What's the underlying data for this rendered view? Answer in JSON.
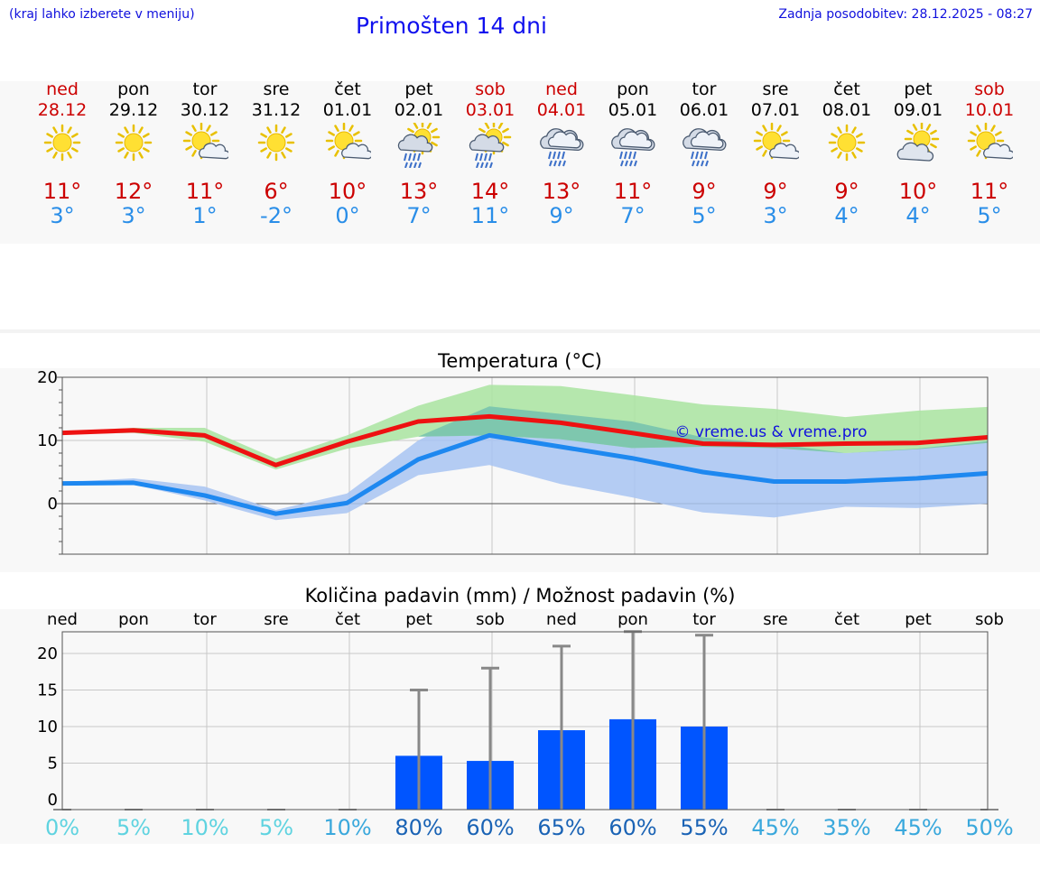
{
  "header": {
    "note": "(kraj lahko izberete v meniju)",
    "title": "Primošten 14 dni",
    "updated": "Zadnja posodobitev: 28.12.2025 - 08:27"
  },
  "colors": {
    "weekend": "#cc0000",
    "temp_max": "#cc0000",
    "temp_min": "#2a8ee8",
    "bar": "#0055ff",
    "errbar": "#888888",
    "max_band": "#a9e4a0",
    "min_band": "#a8c4f2",
    "overlap_band": "#79c4ae"
  },
  "days": [
    {
      "name": "ned",
      "date": "28.12",
      "weekend": true,
      "icon": "sun",
      "tmax": "11°",
      "tmin": "3°"
    },
    {
      "name": "pon",
      "date": "29.12",
      "weekend": false,
      "icon": "sun",
      "tmax": "12°",
      "tmin": "3°"
    },
    {
      "name": "tor",
      "date": "30.12",
      "weekend": false,
      "icon": "sun-cloud",
      "tmax": "11°",
      "tmin": "1°"
    },
    {
      "name": "sre",
      "date": "31.12",
      "weekend": false,
      "icon": "sun",
      "tmax": "6°",
      "tmin": "-2°"
    },
    {
      "name": "čet",
      "date": "01.01",
      "weekend": false,
      "icon": "sun-cloud",
      "tmax": "10°",
      "tmin": "0°"
    },
    {
      "name": "pet",
      "date": "02.01",
      "weekend": false,
      "icon": "sun-rain",
      "tmax": "13°",
      "tmin": "7°"
    },
    {
      "name": "sob",
      "date": "03.01",
      "weekend": true,
      "icon": "sun-rain",
      "tmax": "14°",
      "tmin": "11°"
    },
    {
      "name": "ned",
      "date": "04.01",
      "weekend": true,
      "icon": "rain",
      "tmax": "13°",
      "tmin": "9°"
    },
    {
      "name": "pon",
      "date": "05.01",
      "weekend": false,
      "icon": "rain",
      "tmax": "11°",
      "tmin": "7°"
    },
    {
      "name": "tor",
      "date": "06.01",
      "weekend": false,
      "icon": "rain",
      "tmax": "9°",
      "tmin": "5°"
    },
    {
      "name": "sre",
      "date": "07.01",
      "weekend": false,
      "icon": "sun-cloud",
      "tmax": "9°",
      "tmin": "3°"
    },
    {
      "name": "čet",
      "date": "08.01",
      "weekend": false,
      "icon": "sun",
      "tmax": "9°",
      "tmin": "4°"
    },
    {
      "name": "pet",
      "date": "09.01",
      "weekend": false,
      "icon": "cloud-sun",
      "tmax": "10°",
      "tmin": "4°"
    },
    {
      "name": "sob",
      "date": "10.01",
      "weekend": true,
      "icon": "sun-cloud",
      "tmax": "11°",
      "tmin": "5°"
    }
  ],
  "chart_data": [
    {
      "type": "line",
      "title": "Temperatura (°C)",
      "watermark": "© vreme.us & vreme.pro",
      "ylim": [
        -8,
        20
      ],
      "yticks": [
        0,
        10,
        20
      ],
      "x_index": [
        0,
        1,
        2,
        3,
        4,
        5,
        6,
        7,
        8,
        9,
        10,
        11,
        12,
        13
      ],
      "series": [
        {
          "name": "max",
          "values": [
            11.2,
            11.6,
            10.8,
            6.1,
            9.8,
            13.0,
            13.8,
            12.8,
            11.2,
            9.5,
            9.3,
            9.5,
            9.6,
            10.5
          ]
        },
        {
          "name": "min",
          "values": [
            3.2,
            3.3,
            1.3,
            -1.6,
            0.1,
            7.0,
            10.8,
            9.0,
            7.2,
            5.0,
            3.5,
            3.5,
            4.0,
            4.8
          ]
        }
      ],
      "bands": [
        {
          "name": "max_range",
          "low": [
            11.0,
            11.2,
            9.8,
            5.4,
            8.7,
            10.6,
            10.8,
            10.2,
            8.8,
            9.0,
            8.8,
            8.0,
            8.6,
            9.6
          ],
          "high": [
            11.4,
            12.0,
            12.0,
            7.1,
            10.8,
            15.5,
            18.8,
            18.6,
            17.2,
            15.7,
            15.0,
            13.7,
            14.7,
            15.3
          ]
        },
        {
          "name": "min_range",
          "low": [
            3.0,
            3.0,
            0.5,
            -2.6,
            -1.5,
            4.5,
            6.1,
            3.1,
            1.0,
            -1.4,
            -2.2,
            -0.5,
            -0.7,
            0.0
          ],
          "high": [
            3.4,
            4.0,
            2.7,
            -1.0,
            1.6,
            10.0,
            15.4,
            14.2,
            13.0,
            10.5,
            9.5,
            8.0,
            8.7,
            9.9
          ]
        }
      ]
    },
    {
      "type": "bar",
      "title": "Količina padavin (mm) / Možnost padavin (%)",
      "day_labels": [
        "ned",
        "pon",
        "tor",
        "sre",
        "čet",
        "pet",
        "sob",
        "ned",
        "pon",
        "tor",
        "sre",
        "čet",
        "pet",
        "sob"
      ],
      "categories": [
        "28.12",
        "29.12",
        "30.12",
        "31.12",
        "01.01",
        "02.01",
        "03.01",
        "04.01",
        "05.01",
        "06.01",
        "07.01",
        "08.01",
        "09.01",
        "10.01"
      ],
      "values": [
        0,
        0,
        0,
        0,
        0,
        6,
        5.3,
        9.5,
        11,
        10,
        0,
        0,
        0,
        0
      ],
      "error_max": [
        0,
        0,
        0,
        0,
        0,
        15,
        18,
        21,
        23,
        22.5,
        0,
        0,
        0,
        0
      ],
      "yticks": [
        0,
        5,
        10,
        15,
        20
      ],
      "chance_pct": [
        "0%",
        "5%",
        "10%",
        "5%",
        "10%",
        "80%",
        "60%",
        "65%",
        "60%",
        "55%",
        "45%",
        "35%",
        "45%",
        "50%"
      ],
      "chance_colors": [
        "#5fd3e0",
        "#5fd3e0",
        "#5fd3e0",
        "#5fd3e0",
        "#3aa8dc",
        "#1a63b5",
        "#1a63b5",
        "#1a63b5",
        "#1a63b5",
        "#1a63b5",
        "#3aa8dc",
        "#3aa8dc",
        "#3aa8dc",
        "#3aa8dc"
      ]
    }
  ]
}
